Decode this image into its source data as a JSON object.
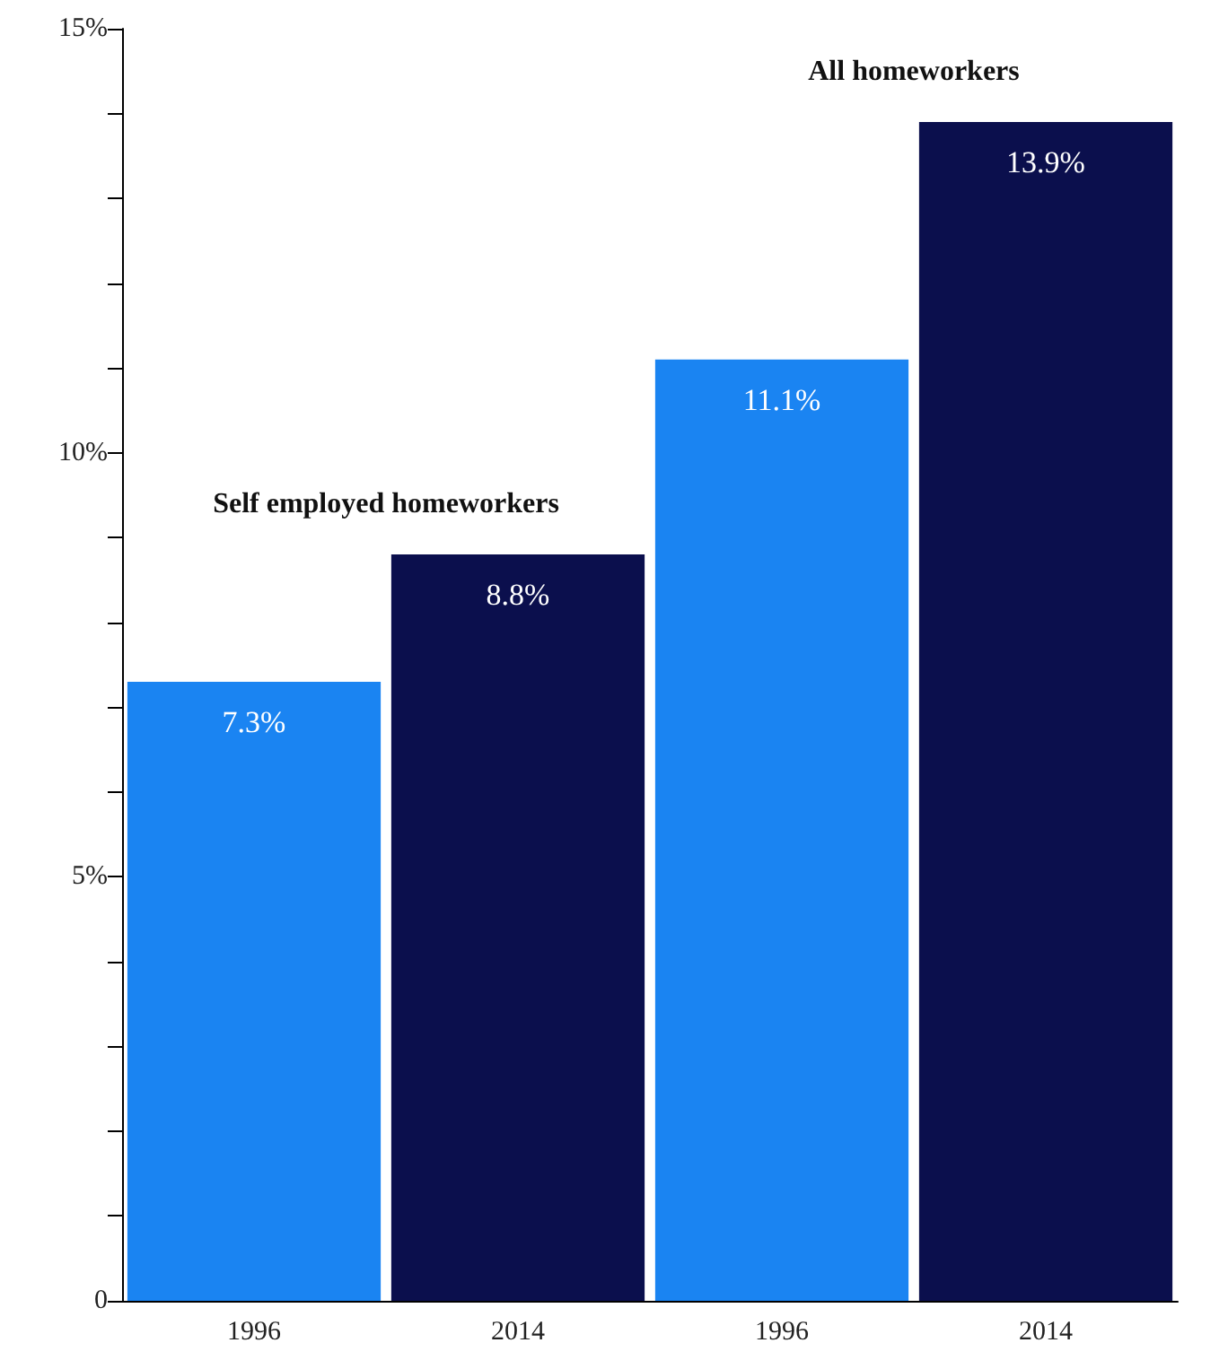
{
  "chart_data": {
    "type": "bar",
    "categories": [
      "1996",
      "2014",
      "1996",
      "2014"
    ],
    "values": [
      7.3,
      8.8,
      11.1,
      13.9
    ],
    "colors": [
      "#1a84f2",
      "#0b0f4d",
      "#1a84f2",
      "#0b0f4d"
    ],
    "value_labels": [
      "7.3%",
      "8.8%",
      "11.1%",
      "13.9%"
    ],
    "annotations": [
      "Self employed homeworkers",
      "All homeworkers"
    ],
    "ylim": [
      0,
      15
    ],
    "yticks": [
      {
        "value": 0,
        "label": "0"
      },
      {
        "value": 1,
        "label": null
      },
      {
        "value": 2,
        "label": null
      },
      {
        "value": 3,
        "label": null
      },
      {
        "value": 4,
        "label": null
      },
      {
        "value": 5,
        "label": "5%"
      },
      {
        "value": 6,
        "label": null
      },
      {
        "value": 7,
        "label": null
      },
      {
        "value": 8,
        "label": null
      },
      {
        "value": 9,
        "label": null
      },
      {
        "value": 10,
        "label": "10%"
      },
      {
        "value": 11,
        "label": null
      },
      {
        "value": 12,
        "label": null
      },
      {
        "value": 13,
        "label": null
      },
      {
        "value": 14,
        "label": null
      },
      {
        "value": 15,
        "label": "15%"
      }
    ],
    "grid": false
  }
}
